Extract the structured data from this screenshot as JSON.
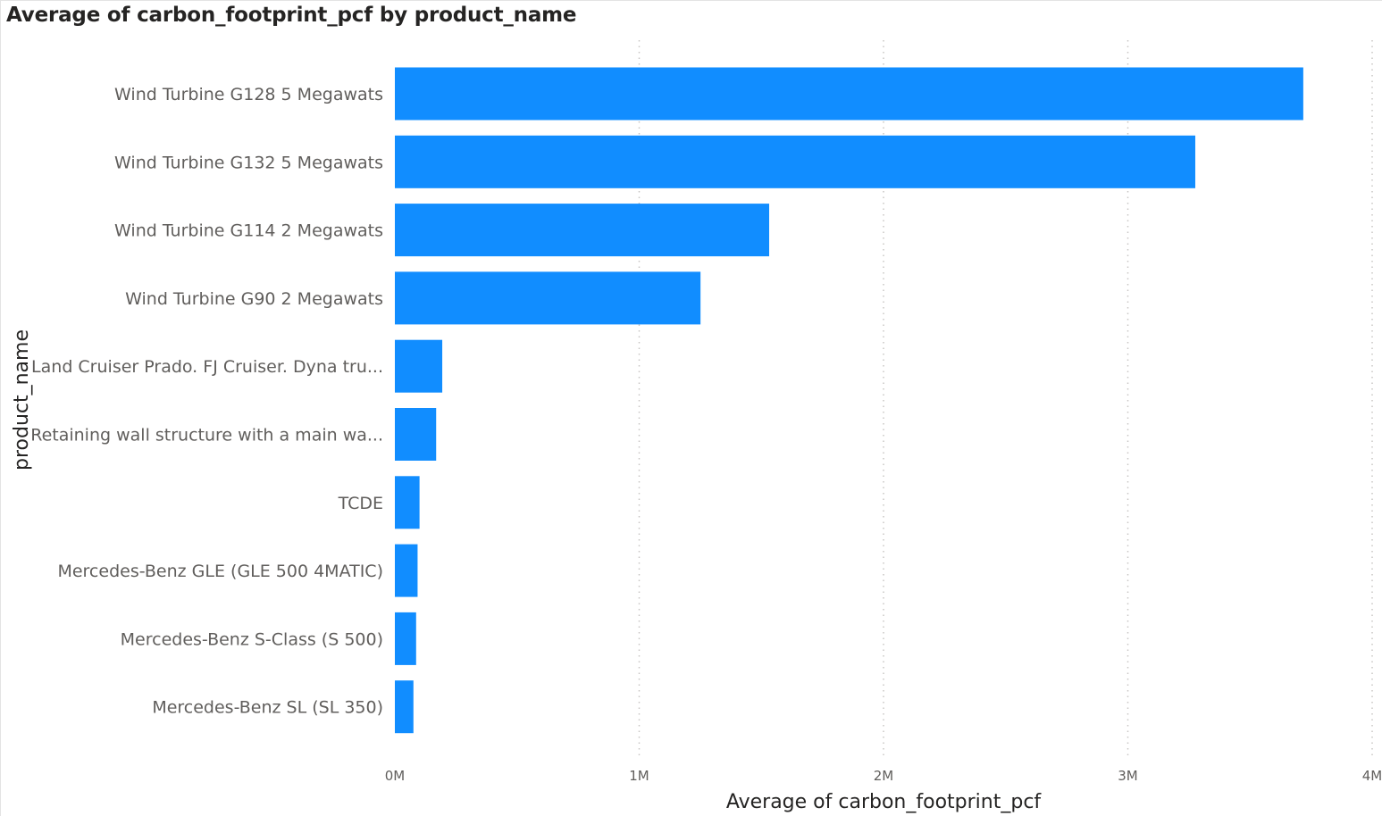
{
  "chart_data": {
    "type": "bar",
    "orientation": "horizontal",
    "title": "Average of carbon_footprint_pcf by product_name",
    "xlabel": "Average of carbon_footprint_pcf",
    "ylabel": "product_name",
    "categories": [
      "Wind Turbine G128 5 Megawats",
      "Wind Turbine G132 5 Megawats",
      "Wind Turbine G114 2 Megawats",
      "Wind Turbine G90 2 Megawats",
      "Land Cruiser Prado. FJ Cruiser. Dyna tru...",
      "Retaining wall structure with a main wa...",
      "TCDE",
      "Mercedes-Benz GLE (GLE 500 4MATIC)",
      "Mercedes-Benz S-Class (S 500)",
      "Mercedes-Benz SL (SL 350)"
    ],
    "values": [
      3718000,
      3276000,
      1532000,
      1251000,
      194000,
      169000,
      101000,
      93000,
      87000,
      76000
    ],
    "xlim": [
      0,
      4000000
    ],
    "xticks": [
      0,
      1000000,
      2000000,
      3000000,
      4000000
    ],
    "xtick_labels": [
      "0M",
      "1M",
      "2M",
      "3M",
      "4M"
    ],
    "grid": "vertical dotted",
    "bar_color": "#118dff"
  }
}
